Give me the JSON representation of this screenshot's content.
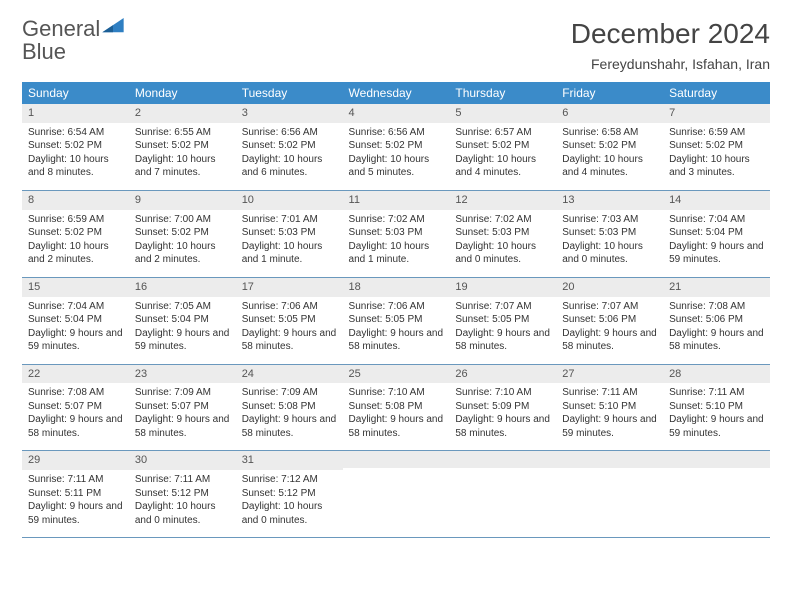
{
  "logo": {
    "word1": "General",
    "word2": "Blue"
  },
  "title": "December 2024",
  "location": "Fereydunshahr, Isfahan, Iran",
  "colors": {
    "header_bg": "#3b8bc9",
    "header_text": "#ffffff",
    "daynum_bg": "#ececec",
    "row_border": "#6a98bd",
    "logo_blue": "#2f7fc2"
  },
  "weekdays": [
    "Sunday",
    "Monday",
    "Tuesday",
    "Wednesday",
    "Thursday",
    "Friday",
    "Saturday"
  ],
  "weeks": [
    [
      {
        "n": "1",
        "sunrise": "Sunrise: 6:54 AM",
        "sunset": "Sunset: 5:02 PM",
        "daylight": "Daylight: 10 hours and 8 minutes."
      },
      {
        "n": "2",
        "sunrise": "Sunrise: 6:55 AM",
        "sunset": "Sunset: 5:02 PM",
        "daylight": "Daylight: 10 hours and 7 minutes."
      },
      {
        "n": "3",
        "sunrise": "Sunrise: 6:56 AM",
        "sunset": "Sunset: 5:02 PM",
        "daylight": "Daylight: 10 hours and 6 minutes."
      },
      {
        "n": "4",
        "sunrise": "Sunrise: 6:56 AM",
        "sunset": "Sunset: 5:02 PM",
        "daylight": "Daylight: 10 hours and 5 minutes."
      },
      {
        "n": "5",
        "sunrise": "Sunrise: 6:57 AM",
        "sunset": "Sunset: 5:02 PM",
        "daylight": "Daylight: 10 hours and 4 minutes."
      },
      {
        "n": "6",
        "sunrise": "Sunrise: 6:58 AM",
        "sunset": "Sunset: 5:02 PM",
        "daylight": "Daylight: 10 hours and 4 minutes."
      },
      {
        "n": "7",
        "sunrise": "Sunrise: 6:59 AM",
        "sunset": "Sunset: 5:02 PM",
        "daylight": "Daylight: 10 hours and 3 minutes."
      }
    ],
    [
      {
        "n": "8",
        "sunrise": "Sunrise: 6:59 AM",
        "sunset": "Sunset: 5:02 PM",
        "daylight": "Daylight: 10 hours and 2 minutes."
      },
      {
        "n": "9",
        "sunrise": "Sunrise: 7:00 AM",
        "sunset": "Sunset: 5:02 PM",
        "daylight": "Daylight: 10 hours and 2 minutes."
      },
      {
        "n": "10",
        "sunrise": "Sunrise: 7:01 AM",
        "sunset": "Sunset: 5:03 PM",
        "daylight": "Daylight: 10 hours and 1 minute."
      },
      {
        "n": "11",
        "sunrise": "Sunrise: 7:02 AM",
        "sunset": "Sunset: 5:03 PM",
        "daylight": "Daylight: 10 hours and 1 minute."
      },
      {
        "n": "12",
        "sunrise": "Sunrise: 7:02 AM",
        "sunset": "Sunset: 5:03 PM",
        "daylight": "Daylight: 10 hours and 0 minutes."
      },
      {
        "n": "13",
        "sunrise": "Sunrise: 7:03 AM",
        "sunset": "Sunset: 5:03 PM",
        "daylight": "Daylight: 10 hours and 0 minutes."
      },
      {
        "n": "14",
        "sunrise": "Sunrise: 7:04 AM",
        "sunset": "Sunset: 5:04 PM",
        "daylight": "Daylight: 9 hours and 59 minutes."
      }
    ],
    [
      {
        "n": "15",
        "sunrise": "Sunrise: 7:04 AM",
        "sunset": "Sunset: 5:04 PM",
        "daylight": "Daylight: 9 hours and 59 minutes."
      },
      {
        "n": "16",
        "sunrise": "Sunrise: 7:05 AM",
        "sunset": "Sunset: 5:04 PM",
        "daylight": "Daylight: 9 hours and 59 minutes."
      },
      {
        "n": "17",
        "sunrise": "Sunrise: 7:06 AM",
        "sunset": "Sunset: 5:05 PM",
        "daylight": "Daylight: 9 hours and 58 minutes."
      },
      {
        "n": "18",
        "sunrise": "Sunrise: 7:06 AM",
        "sunset": "Sunset: 5:05 PM",
        "daylight": "Daylight: 9 hours and 58 minutes."
      },
      {
        "n": "19",
        "sunrise": "Sunrise: 7:07 AM",
        "sunset": "Sunset: 5:05 PM",
        "daylight": "Daylight: 9 hours and 58 minutes."
      },
      {
        "n": "20",
        "sunrise": "Sunrise: 7:07 AM",
        "sunset": "Sunset: 5:06 PM",
        "daylight": "Daylight: 9 hours and 58 minutes."
      },
      {
        "n": "21",
        "sunrise": "Sunrise: 7:08 AM",
        "sunset": "Sunset: 5:06 PM",
        "daylight": "Daylight: 9 hours and 58 minutes."
      }
    ],
    [
      {
        "n": "22",
        "sunrise": "Sunrise: 7:08 AM",
        "sunset": "Sunset: 5:07 PM",
        "daylight": "Daylight: 9 hours and 58 minutes."
      },
      {
        "n": "23",
        "sunrise": "Sunrise: 7:09 AM",
        "sunset": "Sunset: 5:07 PM",
        "daylight": "Daylight: 9 hours and 58 minutes."
      },
      {
        "n": "24",
        "sunrise": "Sunrise: 7:09 AM",
        "sunset": "Sunset: 5:08 PM",
        "daylight": "Daylight: 9 hours and 58 minutes."
      },
      {
        "n": "25",
        "sunrise": "Sunrise: 7:10 AM",
        "sunset": "Sunset: 5:08 PM",
        "daylight": "Daylight: 9 hours and 58 minutes."
      },
      {
        "n": "26",
        "sunrise": "Sunrise: 7:10 AM",
        "sunset": "Sunset: 5:09 PM",
        "daylight": "Daylight: 9 hours and 58 minutes."
      },
      {
        "n": "27",
        "sunrise": "Sunrise: 7:11 AM",
        "sunset": "Sunset: 5:10 PM",
        "daylight": "Daylight: 9 hours and 59 minutes."
      },
      {
        "n": "28",
        "sunrise": "Sunrise: 7:11 AM",
        "sunset": "Sunset: 5:10 PM",
        "daylight": "Daylight: 9 hours and 59 minutes."
      }
    ],
    [
      {
        "n": "29",
        "sunrise": "Sunrise: 7:11 AM",
        "sunset": "Sunset: 5:11 PM",
        "daylight": "Daylight: 9 hours and 59 minutes."
      },
      {
        "n": "30",
        "sunrise": "Sunrise: 7:11 AM",
        "sunset": "Sunset: 5:12 PM",
        "daylight": "Daylight: 10 hours and 0 minutes."
      },
      {
        "n": "31",
        "sunrise": "Sunrise: 7:12 AM",
        "sunset": "Sunset: 5:12 PM",
        "daylight": "Daylight: 10 hours and 0 minutes."
      },
      null,
      null,
      null,
      null
    ]
  ]
}
